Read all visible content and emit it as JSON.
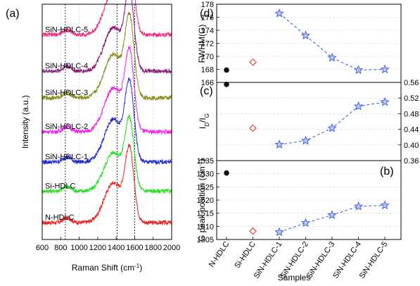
{
  "chart_data": [
    {
      "panel": "(a)",
      "type": "line",
      "xlabel_main": "Raman Shift (cm",
      "xlabel_sup": "-1",
      "xlabel_end": ")",
      "ylabel": "Intensity (a.u.)",
      "xlim": [
        600,
        2000
      ],
      "xticks": [
        600,
        800,
        1000,
        1200,
        1400,
        1600,
        1800,
        2000
      ],
      "reference_lines": [
        850,
        1410,
        1600
      ],
      "series": [
        {
          "name": "N-HDLC",
          "color": "#e8201e",
          "offset": 0.0,
          "amp": 0.78
        },
        {
          "name": "Si-HDLC",
          "color": "#22e01e",
          "offset": 0.26,
          "amp": 0.76
        },
        {
          "name": "SiN-HDLC-1",
          "color": "#1f2ad6",
          "offset": 0.5,
          "amp": 0.84
        },
        {
          "name": "SiN-HDLC-2",
          "color": "#ee22ee",
          "offset": 0.75,
          "amp": 0.86
        },
        {
          "name": "SiN-HDLC-3",
          "color": "#8a8a1c",
          "offset": 1.03,
          "amp": 0.86
        },
        {
          "name": "SiN-HDLC-4",
          "color": "#8a1a7a",
          "offset": 1.25,
          "amp": 0.86
        },
        {
          "name": "SiN-HDLC-5",
          "color": "#ee2a80",
          "offset": 1.55,
          "amp": 0.84
        }
      ]
    },
    {
      "panel": "(d)",
      "type": "scatter",
      "ylabel": "FWHM(G)",
      "ylim": [
        166,
        178
      ],
      "yticks": [
        166,
        168,
        170,
        172,
        174,
        176,
        178
      ],
      "points": [
        {
          "category": "N-HDLC",
          "y": 167.9,
          "marker": "ball"
        },
        {
          "category": "Si-HDLC",
          "y": 169.1,
          "marker": "diamond"
        },
        {
          "category": "SiN-HDLC-1",
          "y": 176.6,
          "marker": "star"
        },
        {
          "category": "SiN-HDLC-2",
          "y": 173.2,
          "marker": "star"
        },
        {
          "category": "SiN-HDLC-3",
          "y": 169.8,
          "marker": "star"
        },
        {
          "category": "SiN-HDLC-4",
          "y": 167.9,
          "marker": "star"
        },
        {
          "category": "SiN-HDLC-5",
          "y": 168.0,
          "marker": "star"
        }
      ]
    },
    {
      "panel": "(c)",
      "type": "scatter",
      "ylabel_main": "I",
      "ylabel_sub1": "D",
      "ylabel_mid": "/I",
      "ylabel_sub2": "G",
      "ylim": [
        0.36,
        0.56
      ],
      "yticks": [
        0.36,
        0.4,
        0.44,
        0.48,
        0.52,
        0.56
      ],
      "ytick_labels": [
        "0.36",
        "0.40",
        "0.44",
        "0.48",
        "0.52",
        "0.56"
      ],
      "points": [
        {
          "category": "N-HDLC",
          "y": 0.555,
          "marker": "ball"
        },
        {
          "category": "Si-HDLC",
          "y": 0.443,
          "marker": "diamond"
        },
        {
          "category": "SiN-HDLC-1",
          "y": 0.401,
          "marker": "star"
        },
        {
          "category": "SiN-HDLC-2",
          "y": 0.411,
          "marker": "star"
        },
        {
          "category": "SiN-HDLC-3",
          "y": 0.443,
          "marker": "star"
        },
        {
          "category": "SiN-HDLC-4",
          "y": 0.499,
          "marker": "star"
        },
        {
          "category": "SiN-HDLC-5",
          "y": 0.51,
          "marker": "star"
        }
      ]
    },
    {
      "panel": "(b)",
      "type": "scatter",
      "ylabel_main": "G peak position (cm",
      "ylabel_sup": "-1",
      "ylabel_end": ")",
      "xlabel": "Samples",
      "ylim": [
        1505,
        1535
      ],
      "yticks": [
        1505,
        1510,
        1515,
        1520,
        1525,
        1530,
        1535
      ],
      "categories": [
        "N-HDLC",
        "Si-HDLC",
        "SiN-HDLC-1",
        "SiN-HDLC-2",
        "SiN-HDLC-3",
        "SiN-HDLC-4",
        "SiN-HDLC-5"
      ],
      "points": [
        {
          "category": "N-HDLC",
          "y": 1530.3,
          "marker": "ball"
        },
        {
          "category": "Si-HDLC",
          "y": 1508.2,
          "marker": "diamond"
        },
        {
          "category": "SiN-HDLC-1",
          "y": 1507.8,
          "marker": "star"
        },
        {
          "category": "SiN-HDLC-2",
          "y": 1511.3,
          "marker": "star"
        },
        {
          "category": "SiN-HDLC-3",
          "y": 1514.3,
          "marker": "star"
        },
        {
          "category": "SiN-HDLC-4",
          "y": 1517.6,
          "marker": "star"
        },
        {
          "category": "SiN-HDLC-5",
          "y": 1518.0,
          "marker": "star"
        }
      ]
    }
  ],
  "colors": {
    "ball": "#111111",
    "diamond": "#e02020",
    "star": "#3a5ad8"
  }
}
